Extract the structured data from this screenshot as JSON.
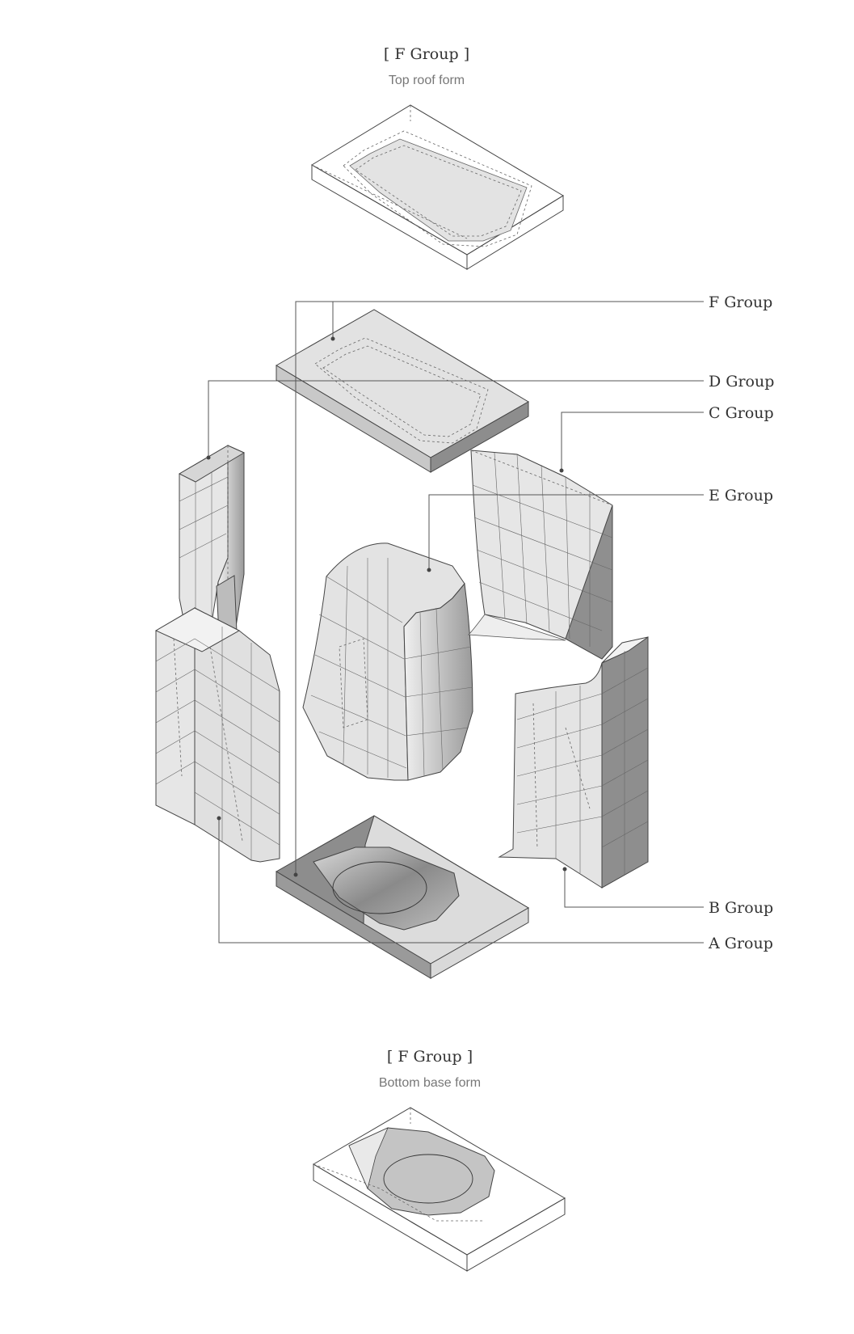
{
  "top_detail": {
    "title": "[ F Group ]",
    "subtitle": "Top roof form"
  },
  "bottom_detail": {
    "title": "[ F Group ]",
    "subtitle": "Bottom base form"
  },
  "callouts": [
    {
      "key": "f_group",
      "label": "F Group"
    },
    {
      "key": "d_group",
      "label": "D Group"
    },
    {
      "key": "c_group",
      "label": "C Group"
    },
    {
      "key": "e_group",
      "label": "E Group"
    },
    {
      "key": "b_group",
      "label": "B Group"
    },
    {
      "key": "a_group",
      "label": "A Group"
    }
  ],
  "colors": {
    "light_face": "#e4e4e4",
    "mid_face": "#bdbdbd",
    "dark_face": "#8e8e8e",
    "line": "#444444"
  }
}
